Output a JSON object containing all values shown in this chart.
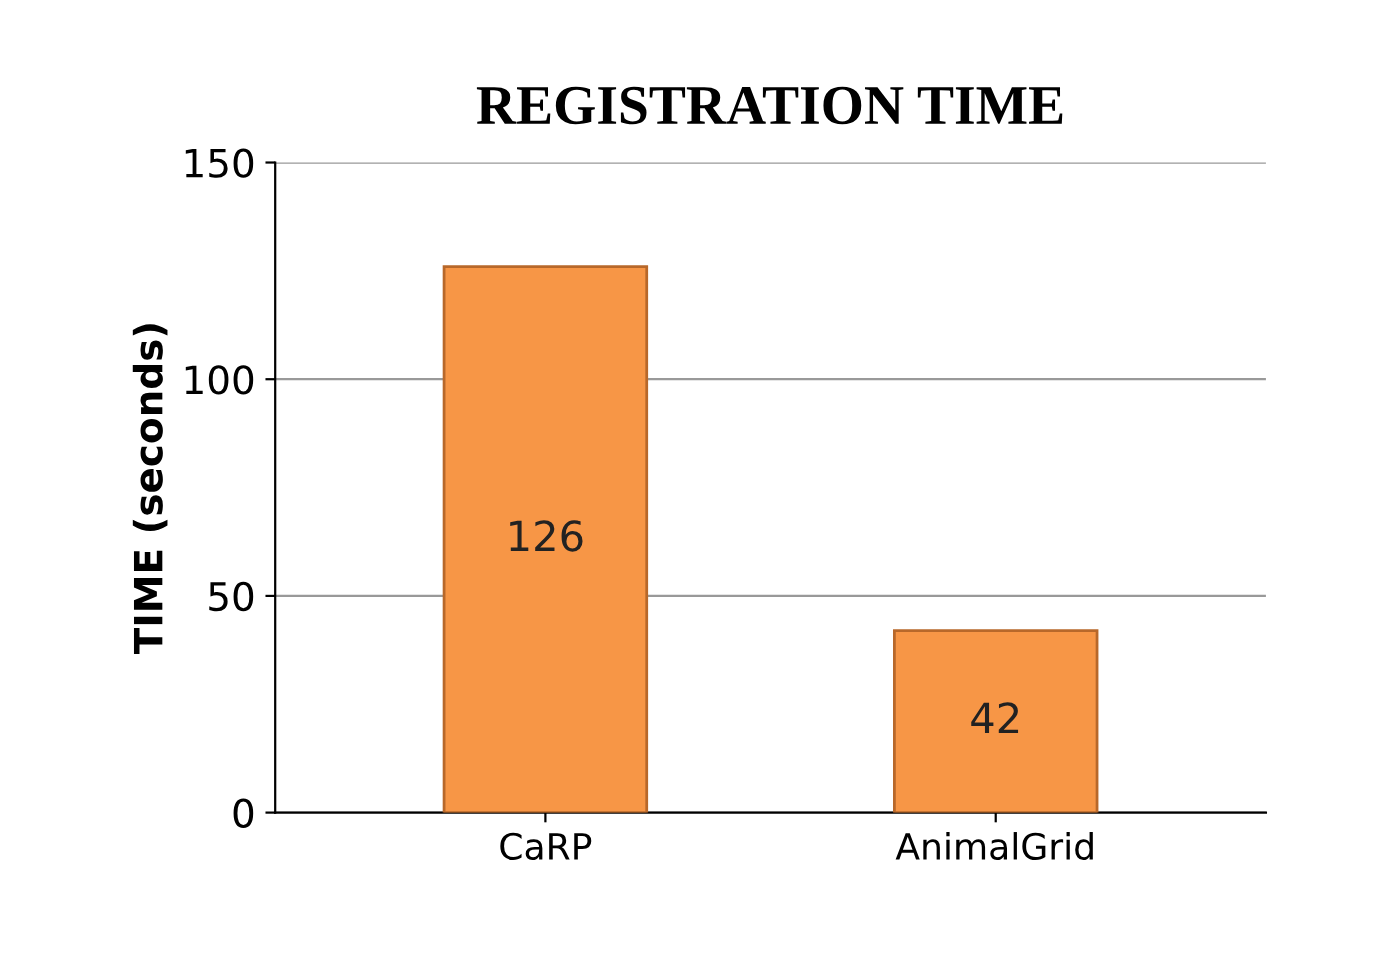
{
  "chart_data": {
    "type": "bar",
    "title": "REGISTRATION TIME",
    "ylabel": "TIME (seconds)",
    "categories": [
      "CaRP",
      "AnimalGrid"
    ],
    "values": [
      126,
      42
    ],
    "color": "#f79646",
    "ylim": [
      0,
      150
    ],
    "yticks": [
      0,
      50,
      100,
      150
    ],
    "grid": "y",
    "data_labels": true
  }
}
